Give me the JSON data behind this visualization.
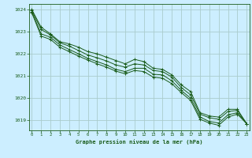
{
  "title": "Graphe pression niveau de la mer (hPa)",
  "background_color": "#cceeff",
  "grid_color": "#aacccc",
  "line_color": "#1a5c1a",
  "xlim": [
    -0.3,
    23.3
  ],
  "ylim": [
    1018.55,
    1024.25
  ],
  "yticks": [
    1019,
    1020,
    1021,
    1022,
    1023,
    1024
  ],
  "xticks": [
    0,
    1,
    2,
    3,
    4,
    5,
    6,
    7,
    8,
    9,
    10,
    11,
    12,
    13,
    14,
    15,
    16,
    17,
    18,
    19,
    20,
    21,
    22,
    23
  ],
  "series": [
    [
      1024.0,
      1023.2,
      1022.9,
      1022.55,
      1022.45,
      1022.3,
      1022.1,
      1022.0,
      1021.85,
      1021.7,
      1021.55,
      1021.75,
      1021.65,
      1021.35,
      1021.3,
      1021.05,
      1020.6,
      1020.3,
      1019.35,
      1019.2,
      1019.15,
      1019.5,
      1019.5,
      1018.85
    ],
    [
      1023.95,
      1023.1,
      1022.85,
      1022.5,
      1022.35,
      1022.15,
      1021.95,
      1021.82,
      1021.68,
      1021.5,
      1021.4,
      1021.55,
      1021.5,
      1021.25,
      1021.2,
      1020.95,
      1020.48,
      1020.15,
      1019.28,
      1019.12,
      1019.05,
      1019.4,
      1019.45,
      1018.85
    ],
    [
      1023.9,
      1022.9,
      1022.75,
      1022.4,
      1022.2,
      1022.0,
      1021.8,
      1021.65,
      1021.5,
      1021.3,
      1021.2,
      1021.35,
      1021.35,
      1021.08,
      1021.05,
      1020.78,
      1020.35,
      1020.0,
      1019.15,
      1018.95,
      1018.88,
      1019.25,
      1019.35,
      1018.85
    ],
    [
      1023.85,
      1022.8,
      1022.65,
      1022.3,
      1022.1,
      1021.9,
      1021.72,
      1021.55,
      1021.4,
      1021.22,
      1021.1,
      1021.25,
      1021.2,
      1020.95,
      1020.9,
      1020.65,
      1020.25,
      1019.9,
      1019.05,
      1018.88,
      1018.78,
      1019.15,
      1019.28,
      1018.85
    ]
  ]
}
